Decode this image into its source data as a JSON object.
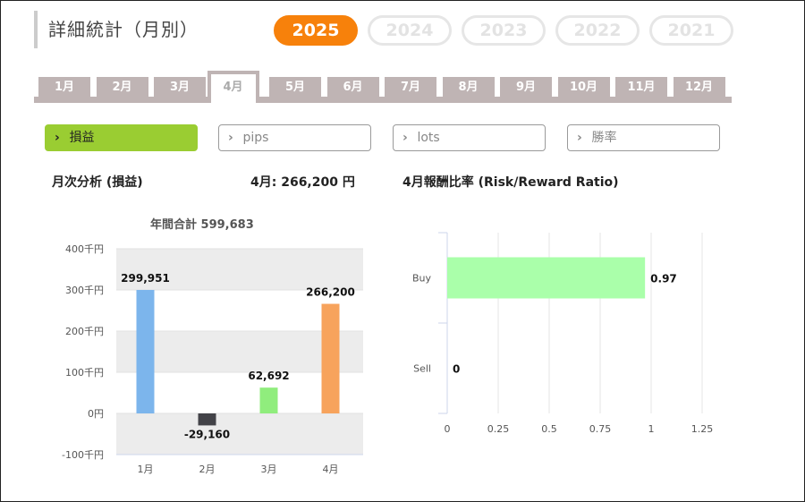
{
  "page": {
    "title": "詳細統計（月別）"
  },
  "years": [
    {
      "label": "2025",
      "active": true
    },
    {
      "label": "2024",
      "active": false
    },
    {
      "label": "2023",
      "active": false
    },
    {
      "label": "2022",
      "active": false
    },
    {
      "label": "2021",
      "active": false
    }
  ],
  "months": [
    "1月",
    "2月",
    "3月",
    "4月",
    "5月",
    "6月",
    "7月",
    "8月",
    "9月",
    "10月",
    "11月",
    "12月"
  ],
  "active_month_index": 3,
  "filters": [
    {
      "label": "損益",
      "active": true
    },
    {
      "label": "pips",
      "active": false
    },
    {
      "label": "lots",
      "active": false
    },
    {
      "label": "勝率",
      "active": false
    }
  ],
  "headings": {
    "monthly_analysis": "月次分析 (損益)",
    "month_value": "4月:  266,200 円",
    "ratio_title": "4月報酬比率 (Risk/Reward Ratio)"
  },
  "chart_data": [
    {
      "type": "bar",
      "subtitle": "年間合計 599,683",
      "categories": [
        "1月",
        "2月",
        "3月",
        "4月"
      ],
      "values": [
        299951,
        -29160,
        62692,
        266200
      ],
      "value_labels": [
        "299,951",
        "-29,160",
        "62,692",
        "266,200"
      ],
      "colors": [
        "#7cb5ec",
        "#434348",
        "#90ed7d",
        "#f7a35c"
      ],
      "yticks": [
        "400千円",
        "300千円",
        "200千円",
        "100千円",
        "0円",
        "-100千円"
      ],
      "ylim": [
        -100000,
        400000
      ],
      "grid": true
    },
    {
      "type": "bar",
      "orientation": "horizontal",
      "categories": [
        "Buy",
        "Sell"
      ],
      "values": [
        0.97,
        0
      ],
      "value_labels": [
        "0.97",
        "0"
      ],
      "color": "#aaffaa",
      "xticks": [
        "0",
        "0.25",
        "0.5",
        "0.75",
        "1",
        "1.25"
      ],
      "xlim": [
        0,
        1.25
      ],
      "grid": true
    }
  ]
}
